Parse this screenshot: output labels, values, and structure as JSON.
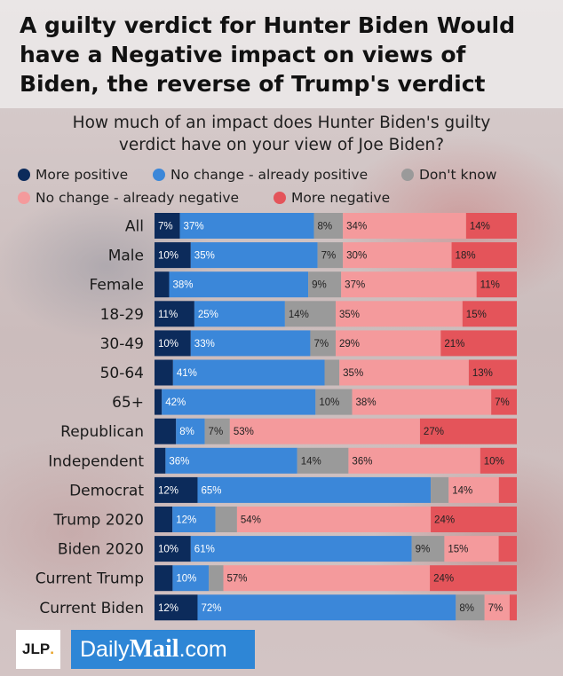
{
  "title": "A guilty verdict for Hunter Biden Would have a Negative impact on views of Biden, the reverse of Trump's verdict",
  "subtitle": "How much of an impact does Hunter Biden's guilty verdict have on your view of Joe Biden?",
  "colors": {
    "more_positive": "#0c2b5b",
    "no_change_positive": "#3b87d9",
    "dont_know": "#9a9a9a",
    "no_change_negative": "#f49a9c",
    "more_negative": "#e4545a"
  },
  "legend": [
    {
      "label": "More positive",
      "color": "#0c2b5b"
    },
    {
      "label": "No change - already positive",
      "color": "#3b87d9"
    },
    {
      "label": "Don't know",
      "color": "#9a9a9a"
    },
    {
      "label": "No change - already negative",
      "color": "#f49a9c"
    },
    {
      "label": "More negative",
      "color": "#e4545a"
    }
  ],
  "chart_data": {
    "type": "bar",
    "orientation": "horizontal",
    "stacked": true,
    "xlim": [
      0,
      100
    ],
    "series_names": [
      "More positive",
      "No change - already positive",
      "Don't know",
      "No change - already negative",
      "More negative"
    ],
    "categories": [
      "All",
      "Male",
      "Female",
      "18-29",
      "30-49",
      "50-64",
      "65+",
      "Republican",
      "Independent",
      "Democrat",
      "Trump 2020",
      "Biden 2020",
      "Current Trump",
      "Current Biden"
    ],
    "values": [
      [
        7,
        37,
        8,
        34,
        14
      ],
      [
        10,
        35,
        7,
        30,
        18
      ],
      [
        4,
        38,
        9,
        37,
        11
      ],
      [
        11,
        25,
        14,
        35,
        15
      ],
      [
        10,
        33,
        7,
        29,
        21
      ],
      [
        5,
        41,
        4,
        35,
        13
      ],
      [
        2,
        42,
        10,
        38,
        7
      ],
      [
        6,
        8,
        7,
        53,
        27
      ],
      [
        3,
        36,
        14,
        36,
        10
      ],
      [
        12,
        65,
        5,
        14,
        5
      ],
      [
        5,
        12,
        6,
        54,
        24
      ],
      [
        10,
        61,
        9,
        15,
        5
      ],
      [
        5,
        10,
        4,
        57,
        24
      ],
      [
        12,
        72,
        8,
        7,
        2
      ]
    ],
    "labels": [
      [
        "7%",
        "37%",
        "8%",
        "34%",
        "14%"
      ],
      [
        "10%",
        "35%",
        "7%",
        "30%",
        "18%"
      ],
      [
        "",
        "38%",
        "9%",
        "37%",
        "11%"
      ],
      [
        "11%",
        "25%",
        "14%",
        "35%",
        "15%"
      ],
      [
        "10%",
        "33%",
        "7%",
        "29%",
        "21%"
      ],
      [
        "",
        "41%",
        "",
        "35%",
        "13%"
      ],
      [
        "",
        "42%",
        "10%",
        "38%",
        "7%"
      ],
      [
        "",
        "8%",
        "7%",
        "53%",
        "27%"
      ],
      [
        "",
        "36%",
        "14%",
        "36%",
        "10%"
      ],
      [
        "12%",
        "65%",
        "",
        "14%",
        ""
      ],
      [
        "",
        "12%",
        "",
        "54%",
        "24%"
      ],
      [
        "10%",
        "61%",
        "9%",
        "15%",
        ""
      ],
      [
        "",
        "10%",
        "",
        "57%",
        "24%"
      ],
      [
        "12%",
        "72%",
        "8%",
        "7%",
        ""
      ]
    ]
  },
  "footer": {
    "jlp_text": "JLP",
    "jlp_dot": ".",
    "dm_daily": "Daily",
    "dm_mail": "Mail",
    "dm_com": ".com"
  }
}
